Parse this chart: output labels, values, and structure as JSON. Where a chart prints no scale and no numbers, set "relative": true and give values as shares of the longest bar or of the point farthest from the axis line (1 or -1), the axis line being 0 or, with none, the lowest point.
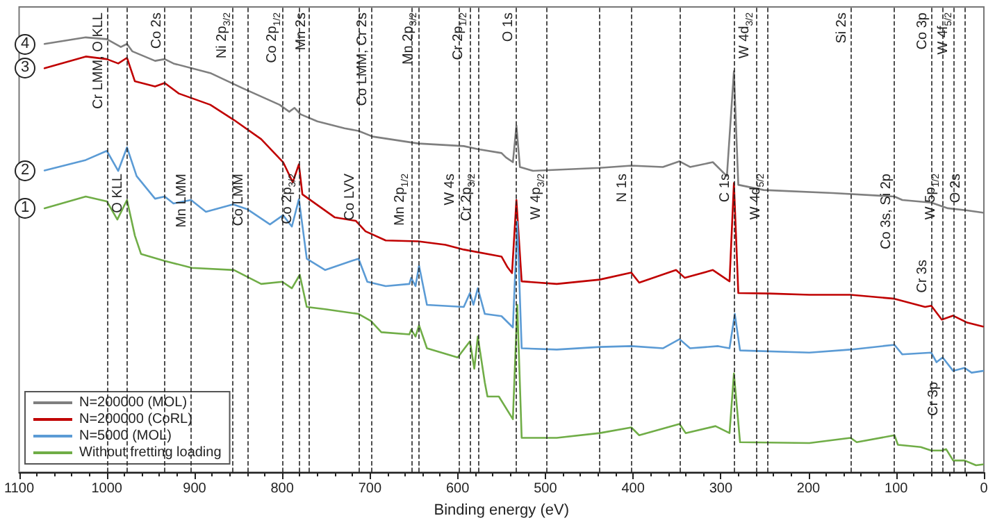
{
  "chart_data": {
    "type": "line",
    "xlabel": "Binding energy (eV)",
    "relative": true,
    "xlim": [
      1100,
      0
    ],
    "xticks": [
      1100,
      1000,
      900,
      800,
      700,
      600,
      500,
      400,
      300,
      200,
      100,
      0
    ],
    "legend": "bottom left",
    "marker": "none",
    "line_style": "solid",
    "grid": false,
    "series": [
      {
        "name": "N=200000 (MOL)",
        "color": "#7f7f7f",
        "x": [
          1071,
          1024,
          1000,
          984,
          977,
          971,
          945,
          934,
          924,
          882,
          845,
          803,
          792,
          786,
          779,
          760,
          729,
          713,
          697,
          645,
          593,
          577,
          550,
          545,
          537,
          533,
          529,
          514,
          438,
          402,
          366,
          347,
          335,
          309,
          293,
          285,
          280,
          251,
          172,
          102,
          93,
          60,
          41,
          19,
          1
        ],
        "values": [
          0.985,
          1.0,
          0.996,
          0.978,
          0.985,
          0.968,
          0.946,
          0.95,
          0.94,
          0.918,
          0.883,
          0.845,
          0.829,
          0.838,
          0.823,
          0.807,
          0.791,
          0.785,
          0.772,
          0.756,
          0.75,
          0.743,
          0.734,
          0.724,
          0.713,
          0.797,
          0.702,
          0.693,
          0.7,
          0.705,
          0.702,
          0.715,
          0.702,
          0.713,
          0.681,
          0.922,
          0.661,
          0.649,
          0.642,
          0.634,
          0.626,
          0.62,
          0.607,
          0.602,
          0.597
        ]
      },
      {
        "name": "N=200000 (CoRL)",
        "color": "#c00000",
        "x": [
          1071,
          1024,
          1000,
          987,
          977,
          968,
          945,
          934,
          918,
          882,
          855,
          824,
          799,
          788,
          781,
          777,
          740,
          716,
          705,
          682,
          645,
          614,
          593,
          550,
          543,
          538,
          533,
          527,
          487,
          438,
          402,
          393,
          351,
          341,
          309,
          290,
          285,
          280,
          246,
          199,
          152,
          102,
          67,
          60,
          48,
          35,
          19,
          1
        ],
        "values": [
          0.929,
          0.956,
          0.95,
          0.94,
          0.953,
          0.899,
          0.887,
          0.895,
          0.871,
          0.845,
          0.81,
          0.766,
          0.713,
          0.667,
          0.708,
          0.639,
          0.586,
          0.578,
          0.554,
          0.533,
          0.531,
          0.523,
          0.512,
          0.496,
          0.471,
          0.458,
          0.626,
          0.439,
          0.433,
          0.443,
          0.459,
          0.436,
          0.465,
          0.447,
          0.465,
          0.439,
          0.665,
          0.412,
          0.411,
          0.408,
          0.408,
          0.399,
          0.38,
          0.383,
          0.351,
          0.36,
          0.344,
          0.335
        ]
      },
      {
        "name": "N=5000 (MOL)",
        "color": "#5b9bd5",
        "x": [
          1071,
          1024,
          1000,
          987,
          977,
          966,
          945,
          934,
          924,
          904,
          887,
          856,
          840,
          814,
          799,
          789,
          781,
          772,
          751,
          721,
          713,
          703,
          682,
          655,
          653,
          648,
          644,
          635,
          593,
          586,
          582,
          577,
          569,
          550,
          537,
          532,
          527,
          487,
          438,
          402,
          366,
          347,
          335,
          303,
          290,
          284,
          278,
          199,
          152,
          102,
          93,
          60,
          54,
          47,
          35,
          22,
          14,
          1
        ],
        "values": [
          0.694,
          0.718,
          0.739,
          0.693,
          0.747,
          0.681,
          0.629,
          0.634,
          0.618,
          0.626,
          0.599,
          0.616,
          0.605,
          0.57,
          0.591,
          0.565,
          0.628,
          0.491,
          0.465,
          0.486,
          0.491,
          0.438,
          0.428,
          0.433,
          0.447,
          0.428,
          0.475,
          0.385,
          0.38,
          0.412,
          0.385,
          0.423,
          0.364,
          0.359,
          0.333,
          0.576,
          0.285,
          0.282,
          0.288,
          0.29,
          0.285,
          0.306,
          0.285,
          0.29,
          0.285,
          0.364,
          0.28,
          0.275,
          0.282,
          0.293,
          0.271,
          0.275,
          0.253,
          0.264,
          0.233,
          0.24,
          0.229,
          0.233
        ]
      },
      {
        "name": "Without fretting loading",
        "color": "#70ad47",
        "x": [
          1071,
          1024,
          1000,
          988,
          977,
          968,
          961,
          934,
          903,
          855,
          824,
          800,
          789,
          780,
          772,
          751,
          713,
          699,
          687,
          655,
          653,
          648,
          644,
          635,
          600,
          586,
          581,
          577,
          569,
          566,
          553,
          537,
          532,
          527,
          487,
          438,
          402,
          393,
          347,
          340,
          306,
          290,
          285,
          278,
          199,
          152,
          145,
          102,
          98,
          72,
          60,
          48,
          43,
          35,
          22,
          9,
          1
        ],
        "values": [
          0.607,
          0.634,
          0.623,
          0.581,
          0.626,
          0.544,
          0.502,
          0.486,
          0.47,
          0.465,
          0.433,
          0.438,
          0.423,
          0.454,
          0.38,
          0.375,
          0.364,
          0.348,
          0.322,
          0.317,
          0.328,
          0.312,
          0.338,
          0.285,
          0.264,
          0.301,
          0.238,
          0.312,
          0.206,
          0.174,
          0.174,
          0.122,
          0.385,
          0.079,
          0.079,
          0.09,
          0.103,
          0.085,
          0.111,
          0.09,
          0.106,
          0.09,
          0.227,
          0.069,
          0.067,
          0.079,
          0.069,
          0.085,
          0.063,
          0.058,
          0.05,
          0.05,
          0.053,
          0.027,
          0.027,
          0.016,
          0.018
        ]
      }
    ],
    "annotations": [
      {
        "text": "1",
        "x": 1071,
        "y": 0.607
      },
      {
        "text": "2",
        "x": 1071,
        "y": 0.694
      },
      {
        "text": "3",
        "x": 1071,
        "y": 0.929
      },
      {
        "text": "4",
        "x": 1071,
        "y": 0.985
      },
      {
        "text": "Cr 3s",
        "x": 60,
        "y": 0.449
      },
      {
        "text": "Cr 3p",
        "x": 47,
        "y": 0.17
      }
    ],
    "ref_lines": [
      {
        "axis": "x",
        "value": 1000,
        "label": "Cr LMM, O KLL"
      },
      {
        "axis": "x",
        "value": 977,
        "label": "O KLL"
      },
      {
        "axis": "x",
        "value": 934,
        "label": "Co 2s"
      },
      {
        "axis": "x",
        "value": 904,
        "label": "Mn LMM"
      },
      {
        "axis": "x",
        "value": 856,
        "label": "Ni 2p$_{3/2}$"
      },
      {
        "axis": "x",
        "value": 840,
        "label": "Co LMM"
      },
      {
        "axis": "x",
        "value": 799,
        "label": "Co 2p$_{1/2}$"
      },
      {
        "axis": "x",
        "value": 781,
        "label": "Co 2p$_{3/2}$"
      },
      {
        "axis": "x",
        "value": 769,
        "label": "Mn 2s"
      },
      {
        "axis": "x",
        "value": 713,
        "label": "Co LVV"
      },
      {
        "axis": "x",
        "value": 699,
        "label": "Co LMM, Cr 2s"
      },
      {
        "axis": "x",
        "value": 653,
        "label": "Mn 2p$_{1/2}$"
      },
      {
        "axis": "x",
        "value": 644,
        "label": "Mn 2p$_{3/2}$"
      },
      {
        "axis": "x",
        "value": 599,
        "label": "W 4s"
      },
      {
        "axis": "x",
        "value": 586,
        "label": "Cr 2p$_{1/2}$"
      },
      {
        "axis": "x",
        "value": 577,
        "label": "Cr 2p$_{3/2}$"
      },
      {
        "axis": "x",
        "value": 533,
        "label": "O 1s"
      },
      {
        "axis": "x",
        "value": 498,
        "label": "W 4p$_{3/2}$"
      },
      {
        "axis": "x",
        "value": 438
      },
      {
        "axis": "x",
        "value": 402,
        "label": "N 1s"
      },
      {
        "axis": "x",
        "value": 347
      },
      {
        "axis": "x",
        "value": 285,
        "label": "C 1s"
      },
      {
        "axis": "x",
        "value": 260,
        "label": "W 4d$_{3/2}$"
      },
      {
        "axis": "x",
        "value": 247,
        "label": "W 4d$_{5/2}$"
      },
      {
        "axis": "x",
        "value": 152,
        "label": "Si 2s"
      },
      {
        "axis": "x",
        "value": 102,
        "label": "Co 3s, Si 2p"
      },
      {
        "axis": "x",
        "value": 60,
        "label": "Co 3p"
      },
      {
        "axis": "x",
        "value": 47,
        "label": "W 5p$_{1/2}$"
      },
      {
        "axis": "x",
        "value": 34,
        "label": "W 4f$_{5/2}$"
      },
      {
        "axis": "x",
        "value": 22,
        "label": "O 2s"
      }
    ]
  }
}
